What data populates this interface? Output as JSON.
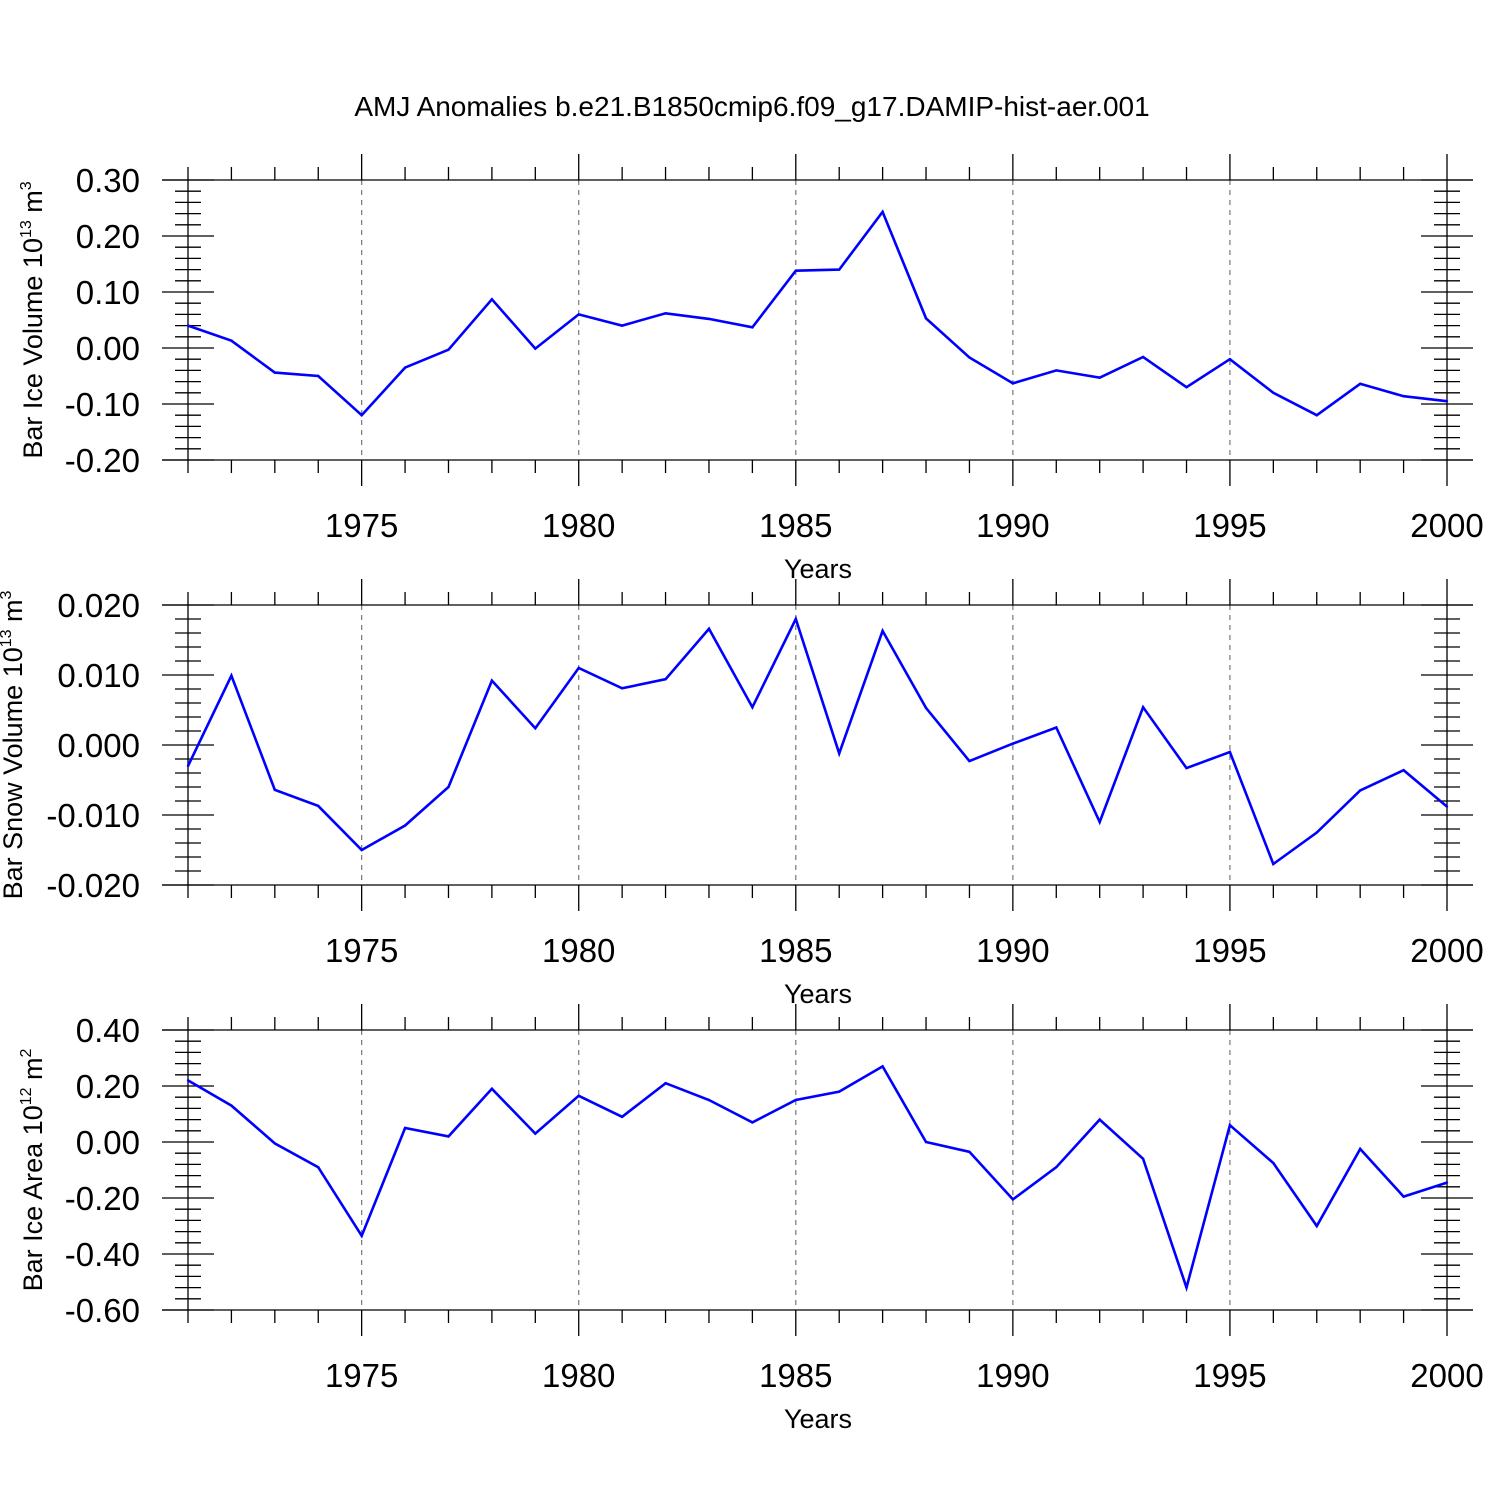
{
  "title": "AMJ Anomalies b.e21.B1850cmip6.f09_g17.DAMIP-hist-aer.001",
  "colors": {
    "line": "#0000ff",
    "axis": "#000000",
    "grid": "#777777"
  },
  "chart_data": [
    {
      "type": "line",
      "ylabel": {
        "text": "Bar Ice Volume 10",
        "exp": "13",
        "unit": " m",
        "unit_exp": "3"
      },
      "xlabel": "Years",
      "xlim": [
        1971,
        2000
      ],
      "ylim": [
        -0.2,
        0.3
      ],
      "yticks": [
        -0.2,
        -0.1,
        0.0,
        0.1,
        0.2,
        0.3
      ],
      "yticklabels": [
        "-0.20",
        "-0.10",
        "0.00",
        "0.10",
        "0.20",
        "0.30"
      ],
      "xticks": [
        1975,
        1980,
        1985,
        1990,
        1995,
        2000
      ],
      "xticklabels": [
        "1975",
        "1980",
        "1985",
        "1990",
        "1995",
        "2000"
      ],
      "x": [
        1971,
        1972,
        1973,
        1974,
        1975,
        1976,
        1977,
        1978,
        1979,
        1980,
        1981,
        1982,
        1983,
        1984,
        1985,
        1986,
        1987,
        1988,
        1989,
        1990,
        1991,
        1992,
        1993,
        1994,
        1995,
        1996,
        1997,
        1998,
        1999,
        2000
      ],
      "values": [
        0.04,
        0.013,
        -0.044,
        -0.05,
        -0.12,
        -0.035,
        -0.003,
        0.087,
        -0.001,
        0.06,
        0.04,
        0.062,
        0.052,
        0.037,
        0.138,
        0.14,
        0.243,
        0.053,
        -0.017,
        -0.063,
        -0.04,
        -0.053,
        -0.016,
        -0.07,
        -0.02,
        -0.08,
        -0.12,
        -0.064,
        -0.086,
        -0.095
      ]
    },
    {
      "type": "line",
      "ylabel": {
        "text": "Bar Snow Volume 10",
        "exp": "13",
        "unit": " m",
        "unit_exp": "3"
      },
      "xlabel": "Years",
      "xlim": [
        1971,
        2000
      ],
      "ylim": [
        -0.02,
        0.02
      ],
      "yticks": [
        -0.02,
        -0.01,
        0.0,
        0.01,
        0.02
      ],
      "yticklabels": [
        "-0.020",
        "-0.010",
        "0.000",
        "0.010",
        "0.020"
      ],
      "xticks": [
        1975,
        1980,
        1985,
        1990,
        1995,
        2000
      ],
      "xticklabels": [
        "1975",
        "1980",
        "1985",
        "1990",
        "1995",
        "2000"
      ],
      "x": [
        1971,
        1972,
        1973,
        1974,
        1975,
        1976,
        1977,
        1978,
        1979,
        1980,
        1981,
        1982,
        1983,
        1984,
        1985,
        1986,
        1987,
        1988,
        1989,
        1990,
        1991,
        1992,
        1993,
        1994,
        1995,
        1996,
        1997,
        1998,
        1999,
        2000
      ],
      "values": [
        -0.003,
        0.0099,
        -0.0064,
        -0.0087,
        -0.015,
        -0.0115,
        -0.006,
        0.0092,
        0.0024,
        0.011,
        0.0081,
        0.0094,
        0.0166,
        0.0054,
        0.018,
        -0.0012,
        0.0163,
        0.0053,
        -0.0023,
        0.0002,
        0.0025,
        -0.011,
        0.0054,
        -0.0033,
        -0.001,
        -0.017,
        -0.0125,
        -0.0065,
        -0.0036,
        -0.0088
      ]
    },
    {
      "type": "line",
      "ylabel": {
        "text": "Bar Ice Area 10",
        "exp": "12",
        "unit": " m",
        "unit_exp": "2"
      },
      "xlabel": "Years",
      "xlim": [
        1971,
        2000
      ],
      "ylim": [
        -0.6,
        0.4
      ],
      "yticks": [
        -0.6,
        -0.4,
        -0.2,
        0.0,
        0.2,
        0.4
      ],
      "yticklabels": [
        "-0.60",
        "-0.40",
        "-0.20",
        "0.00",
        "0.20",
        "0.40"
      ],
      "xticks": [
        1975,
        1980,
        1985,
        1990,
        1995,
        2000
      ],
      "xticklabels": [
        "1975",
        "1980",
        "1985",
        "1990",
        "1995",
        "2000"
      ],
      "x": [
        1971,
        1972,
        1973,
        1974,
        1975,
        1976,
        1977,
        1978,
        1979,
        1980,
        1981,
        1982,
        1983,
        1984,
        1985,
        1986,
        1987,
        1988,
        1989,
        1990,
        1991,
        1992,
        1993,
        1994,
        1995,
        1996,
        1997,
        1998,
        1999,
        2000
      ],
      "values": [
        0.22,
        0.13,
        -0.005,
        -0.09,
        -0.335,
        0.05,
        0.02,
        0.19,
        0.03,
        0.165,
        0.09,
        0.21,
        0.15,
        0.07,
        0.15,
        0.18,
        0.27,
        0.0,
        -0.035,
        -0.205,
        -0.09,
        0.08,
        -0.06,
        -0.52,
        0.06,
        -0.075,
        -0.3,
        -0.025,
        -0.195,
        -0.145
      ]
    }
  ]
}
